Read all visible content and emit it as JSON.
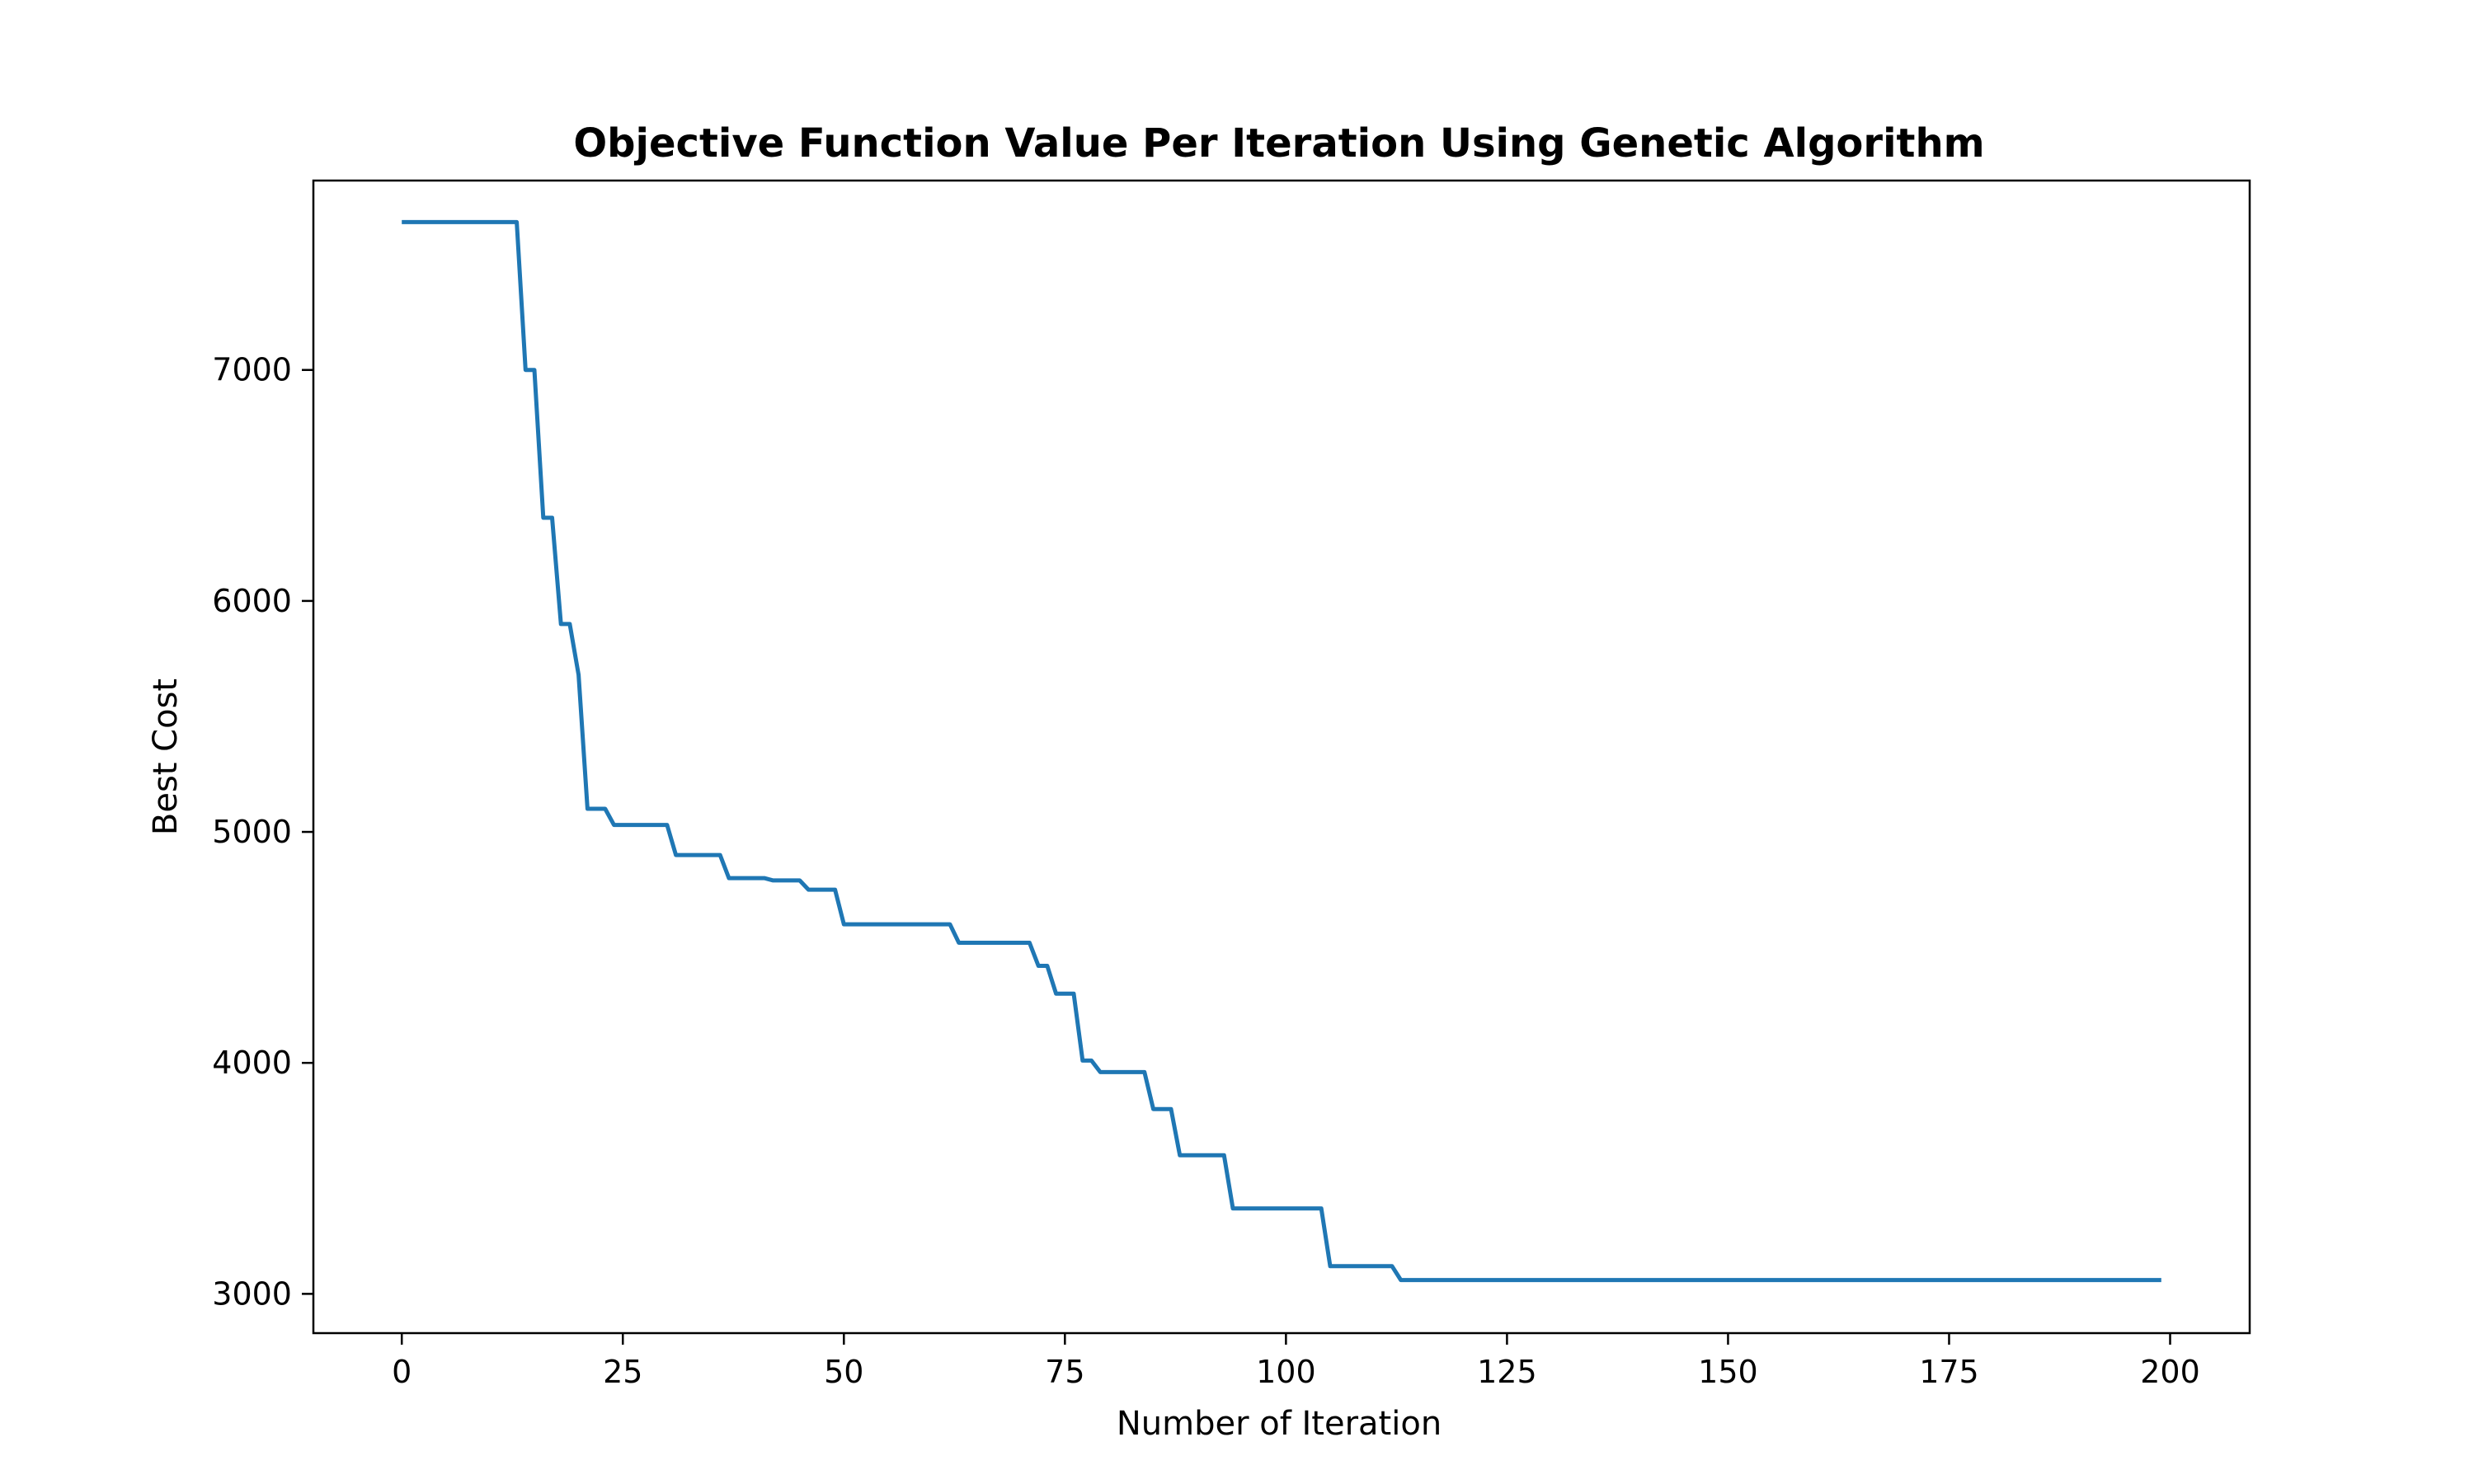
{
  "chart_data": {
    "type": "line",
    "title": "Objective Function Value Per Iteration Using Genetic Algorithm",
    "xlabel": "Number of Iteration",
    "ylabel": "Best Cost",
    "xlim": [
      -10,
      209
    ],
    "ylim": [
      2830,
      7820
    ],
    "xticks": [
      0,
      25,
      50,
      75,
      100,
      125,
      150,
      175,
      200
    ],
    "yticks": [
      3000,
      4000,
      5000,
      6000,
      7000
    ],
    "grid": false,
    "series": [
      {
        "color": "#1f77b4",
        "x": [
          0,
          13,
          14,
          15,
          16,
          17,
          18,
          19,
          20,
          21,
          22,
          23,
          24,
          30,
          31,
          36,
          37,
          41,
          42,
          45,
          46,
          49,
          50,
          62,
          63,
          71,
          72,
          73,
          74,
          76,
          77,
          78,
          79,
          84,
          85,
          87,
          88,
          93,
          94,
          104,
          105,
          112,
          113,
          199
        ],
        "y": [
          7640,
          7640,
          7000,
          7000,
          6360,
          6360,
          5900,
          5900,
          5680,
          5100,
          5100,
          5100,
          5030,
          5030,
          4900,
          4900,
          4800,
          4800,
          4790,
          4790,
          4750,
          4750,
          4600,
          4600,
          4520,
          4520,
          4420,
          4420,
          4300,
          4300,
          4010,
          4010,
          3960,
          3960,
          3800,
          3800,
          3600,
          3600,
          3370,
          3370,
          3120,
          3120,
          3060,
          3060
        ]
      }
    ]
  }
}
